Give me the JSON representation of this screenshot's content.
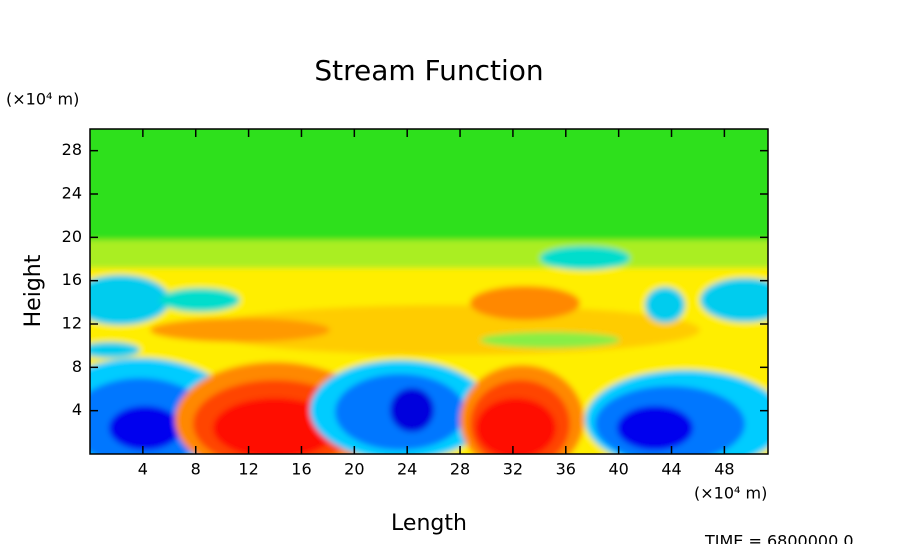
{
  "chart_data": {
    "type": "contour",
    "title": "Stream Function",
    "xlabel": "Length",
    "ylabel": "Height",
    "x_unit_label": "(×10⁴ m)",
    "y_unit_label": "(×10⁴ m)",
    "annotation": "TIME = 6800000.0",
    "xlim": [
      0,
      51.3
    ],
    "ylim": [
      0,
      30
    ],
    "xticks": [
      4,
      8,
      12,
      16,
      20,
      24,
      28,
      32,
      36,
      40,
      44,
      48
    ],
    "yticks": [
      4,
      8,
      12,
      16,
      20,
      24,
      28
    ]
  }
}
